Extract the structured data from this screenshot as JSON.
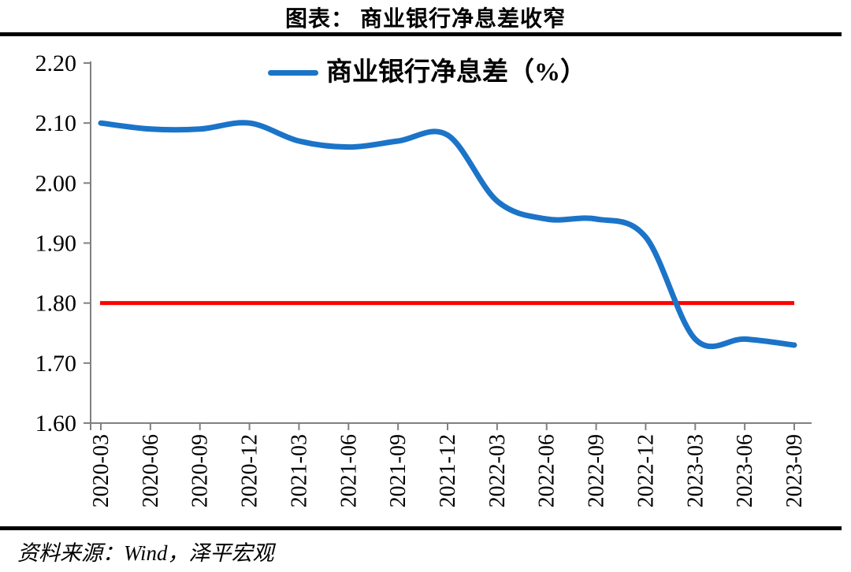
{
  "title": "图表： 商业银行净息差收窄",
  "legend": {
    "series_label": "商业银行净息差（%）",
    "swatch_color": "#1B74C8"
  },
  "source_note": "资料来源：Wind，泽平宏观",
  "colors": {
    "series_line": "#1B74C8",
    "reference_line": "#FF0000",
    "axis": "#808080",
    "rule": "#000000",
    "text": "#000000"
  },
  "chart_data": {
    "type": "line",
    "title": "图表： 商业银行净息差收窄",
    "categories": [
      "2020-03",
      "2020-06",
      "2020-09",
      "2020-12",
      "2021-03",
      "2021-06",
      "2021-09",
      "2021-12",
      "2022-03",
      "2022-06",
      "2022-09",
      "2022-12",
      "2023-03",
      "2023-06",
      "2023-09"
    ],
    "series": [
      {
        "name": "商业银行净息差（%）",
        "color": "#1B74C8",
        "smooth": true,
        "values": [
          2.1,
          2.09,
          2.09,
          2.1,
          2.07,
          2.06,
          2.07,
          2.08,
          1.97,
          1.94,
          1.94,
          1.91,
          1.74,
          1.74,
          1.73
        ]
      }
    ],
    "reference_line": {
      "value": 1.8,
      "color": "#FF0000"
    },
    "ylim": [
      1.6,
      2.2
    ],
    "y_tick_step": 0.1,
    "y_tick_labels": [
      "2.20",
      "2.10",
      "2.00",
      "1.90",
      "1.80",
      "1.70",
      "1.60"
    ],
    "xlabel": "",
    "ylabel": "",
    "grid": false,
    "legend_position": "top-center"
  }
}
